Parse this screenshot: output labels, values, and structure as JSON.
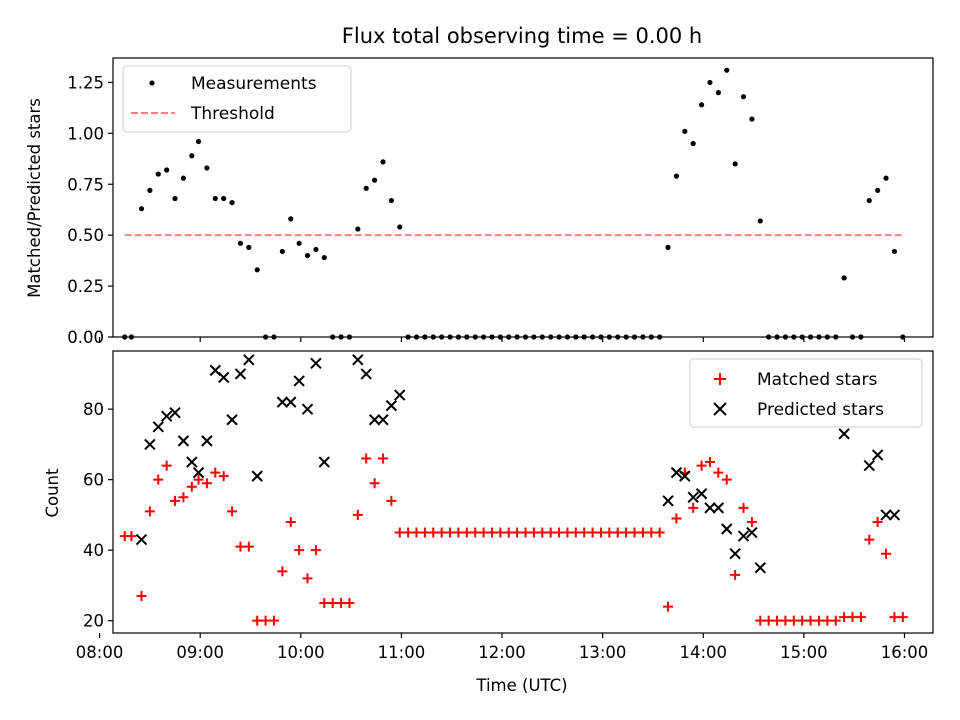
{
  "figure": {
    "title": "Flux total observing time = 0.00 h",
    "xlabel": "Time (UTC)",
    "x_ticks": [
      "08:00",
      "09:00",
      "10:00",
      "11:00",
      "12:00",
      "13:00",
      "14:00",
      "15:00",
      "16:00"
    ]
  },
  "chart_data": [
    {
      "type": "scatter",
      "panel": "top",
      "ylabel": "Matched/Predicted stars",
      "xlim": [
        "08:08",
        "16:17"
      ],
      "ylim": [
        0,
        1.37
      ],
      "y_ticks": [
        "0.00",
        "0.25",
        "0.50",
        "0.75",
        "1.00",
        "1.25"
      ],
      "y_tick_values": [
        0,
        0.25,
        0.5,
        0.75,
        1.0,
        1.25
      ],
      "legend": "top-left",
      "series": [
        {
          "name": "Measurements",
          "marker": "dot",
          "color": "#000000",
          "points": [
            [
              "08:15",
              0
            ],
            [
              "08:19",
              0
            ],
            [
              "08:25",
              0.63
            ],
            [
              "08:30",
              0.72
            ],
            [
              "08:35",
              0.8
            ],
            [
              "08:40",
              0.82
            ],
            [
              "08:45",
              0.68
            ],
            [
              "08:50",
              0.78
            ],
            [
              "08:55",
              0.89
            ],
            [
              "08:59",
              0.96
            ],
            [
              "09:04",
              0.83
            ],
            [
              "09:09",
              0.68
            ],
            [
              "09:14",
              0.68
            ],
            [
              "09:19",
              0.66
            ],
            [
              "09:24",
              0.46
            ],
            [
              "09:29",
              0.44
            ],
            [
              "09:34",
              0.33
            ],
            [
              "09:39",
              0
            ],
            [
              "09:44",
              0
            ],
            [
              "09:49",
              0.42
            ],
            [
              "09:54",
              0.58
            ],
            [
              "09:59",
              0.46
            ],
            [
              "10:04",
              0.4
            ],
            [
              "10:09",
              0.43
            ],
            [
              "10:14",
              0.39
            ],
            [
              "10:19",
              0
            ],
            [
              "10:24",
              0
            ],
            [
              "10:29",
              0
            ],
            [
              "10:34",
              0.53
            ],
            [
              "10:39",
              0.73
            ],
            [
              "10:44",
              0.77
            ],
            [
              "10:49",
              0.86
            ],
            [
              "10:54",
              0.67
            ],
            [
              "10:59",
              0.54
            ],
            [
              "11:04",
              0
            ],
            [
              "11:09",
              0
            ],
            [
              "11:14",
              0
            ],
            [
              "11:19",
              0
            ],
            [
              "11:24",
              0
            ],
            [
              "11:29",
              0
            ],
            [
              "11:34",
              0
            ],
            [
              "11:39",
              0
            ],
            [
              "11:44",
              0
            ],
            [
              "11:49",
              0
            ],
            [
              "11:54",
              0
            ],
            [
              "11:59",
              0
            ],
            [
              "12:04",
              0
            ],
            [
              "12:09",
              0
            ],
            [
              "12:14",
              0
            ],
            [
              "12:19",
              0
            ],
            [
              "12:24",
              0
            ],
            [
              "12:29",
              0
            ],
            [
              "12:34",
              0
            ],
            [
              "12:39",
              0
            ],
            [
              "12:44",
              0
            ],
            [
              "12:49",
              0
            ],
            [
              "12:54",
              0
            ],
            [
              "12:59",
              0
            ],
            [
              "13:04",
              0
            ],
            [
              "13:09",
              0
            ],
            [
              "13:14",
              0
            ],
            [
              "13:19",
              0
            ],
            [
              "13:24",
              0
            ],
            [
              "13:29",
              0
            ],
            [
              "13:34",
              0
            ],
            [
              "13:39",
              0.44
            ],
            [
              "13:44",
              0.79
            ],
            [
              "13:49",
              1.01
            ],
            [
              "13:54",
              0.95
            ],
            [
              "13:59",
              1.14
            ],
            [
              "14:04",
              1.25
            ],
            [
              "14:09",
              1.2
            ],
            [
              "14:14",
              1.31
            ],
            [
              "14:19",
              0.85
            ],
            [
              "14:24",
              1.18
            ],
            [
              "14:29",
              1.07
            ],
            [
              "14:34",
              0.57
            ],
            [
              "14:39",
              0
            ],
            [
              "14:44",
              0
            ],
            [
              "14:49",
              0
            ],
            [
              "14:54",
              0
            ],
            [
              "14:59",
              0
            ],
            [
              "15:04",
              0
            ],
            [
              "15:09",
              0
            ],
            [
              "15:14",
              0
            ],
            [
              "15:19",
              0
            ],
            [
              "15:24",
              0.29
            ],
            [
              "15:29",
              0
            ],
            [
              "15:34",
              0
            ],
            [
              "15:39",
              0.67
            ],
            [
              "15:44",
              0.72
            ],
            [
              "15:49",
              0.78
            ],
            [
              "15:54",
              0.42
            ],
            [
              "15:59",
              0
            ]
          ]
        },
        {
          "name": "Threshold",
          "marker": "dashed-line",
          "color": "#ff7f7f",
          "points": [
            [
              "08:15",
              0.5
            ],
            [
              "15:59",
              0.5
            ]
          ]
        }
      ]
    },
    {
      "type": "scatter",
      "panel": "bottom",
      "ylabel": "Count",
      "xlim": [
        "08:08",
        "16:17"
      ],
      "ylim": [
        16.5,
        96.5
      ],
      "y_ticks": [
        "20",
        "40",
        "60",
        "80"
      ],
      "y_tick_values": [
        20,
        40,
        60,
        80
      ],
      "legend": "top-right",
      "series": [
        {
          "name": "Matched stars",
          "marker": "plus",
          "color": "#ff0000",
          "points": [
            [
              "08:15",
              44
            ],
            [
              "08:19",
              44
            ],
            [
              "08:25",
              27
            ],
            [
              "08:30",
              51
            ],
            [
              "08:35",
              60
            ],
            [
              "08:40",
              64
            ],
            [
              "08:45",
              54
            ],
            [
              "08:50",
              55
            ],
            [
              "08:55",
              58
            ],
            [
              "08:59",
              60
            ],
            [
              "09:04",
              59
            ],
            [
              "09:09",
              62
            ],
            [
              "09:14",
              61
            ],
            [
              "09:19",
              51
            ],
            [
              "09:24",
              41
            ],
            [
              "09:29",
              41
            ],
            [
              "09:34",
              20
            ],
            [
              "09:39",
              20
            ],
            [
              "09:44",
              20
            ],
            [
              "09:49",
              34
            ],
            [
              "09:54",
              48
            ],
            [
              "09:59",
              40
            ],
            [
              "10:04",
              32
            ],
            [
              "10:09",
              40
            ],
            [
              "10:14",
              25
            ],
            [
              "10:19",
              25
            ],
            [
              "10:24",
              25
            ],
            [
              "10:29",
              25
            ],
            [
              "10:34",
              50
            ],
            [
              "10:39",
              66
            ],
            [
              "10:44",
              59
            ],
            [
              "10:49",
              66
            ],
            [
              "10:54",
              54
            ],
            [
              "10:59",
              45
            ],
            [
              "11:04",
              45
            ],
            [
              "11:09",
              45
            ],
            [
              "11:14",
              45
            ],
            [
              "11:19",
              45
            ],
            [
              "11:24",
              45
            ],
            [
              "11:29",
              45
            ],
            [
              "11:34",
              45
            ],
            [
              "11:39",
              45
            ],
            [
              "11:44",
              45
            ],
            [
              "11:49",
              45
            ],
            [
              "11:54",
              45
            ],
            [
              "11:59",
              45
            ],
            [
              "12:04",
              45
            ],
            [
              "12:09",
              45
            ],
            [
              "12:14",
              45
            ],
            [
              "12:19",
              45
            ],
            [
              "12:24",
              45
            ],
            [
              "12:29",
              45
            ],
            [
              "12:34",
              45
            ],
            [
              "12:39",
              45
            ],
            [
              "12:44",
              45
            ],
            [
              "12:49",
              45
            ],
            [
              "12:54",
              45
            ],
            [
              "12:59",
              45
            ],
            [
              "13:04",
              45
            ],
            [
              "13:09",
              45
            ],
            [
              "13:14",
              45
            ],
            [
              "13:19",
              45
            ],
            [
              "13:24",
              45
            ],
            [
              "13:29",
              45
            ],
            [
              "13:34",
              45
            ],
            [
              "13:39",
              24
            ],
            [
              "13:44",
              49
            ],
            [
              "13:49",
              62
            ],
            [
              "13:54",
              52
            ],
            [
              "13:59",
              64
            ],
            [
              "14:04",
              65
            ],
            [
              "14:09",
              62
            ],
            [
              "14:14",
              60
            ],
            [
              "14:19",
              33
            ],
            [
              "14:24",
              52
            ],
            [
              "14:29",
              48
            ],
            [
              "14:34",
              20
            ],
            [
              "14:39",
              20
            ],
            [
              "14:44",
              20
            ],
            [
              "14:49",
              20
            ],
            [
              "14:54",
              20
            ],
            [
              "14:59",
              20
            ],
            [
              "15:04",
              20
            ],
            [
              "15:09",
              20
            ],
            [
              "15:14",
              20
            ],
            [
              "15:19",
              20
            ],
            [
              "15:24",
              21
            ],
            [
              "15:29",
              21
            ],
            [
              "15:34",
              21
            ],
            [
              "15:39",
              43
            ],
            [
              "15:44",
              48
            ],
            [
              "15:49",
              39
            ],
            [
              "15:54",
              21
            ],
            [
              "15:59",
              21
            ]
          ]
        },
        {
          "name": "Predicted stars",
          "marker": "x",
          "color": "#000000",
          "points": [
            [
              "08:25",
              43
            ],
            [
              "08:30",
              70
            ],
            [
              "08:35",
              75
            ],
            [
              "08:40",
              78
            ],
            [
              "08:45",
              79
            ],
            [
              "08:50",
              71
            ],
            [
              "08:55",
              65
            ],
            [
              "08:59",
              62
            ],
            [
              "09:04",
              71
            ],
            [
              "09:09",
              91
            ],
            [
              "09:14",
              89
            ],
            [
              "09:19",
              77
            ],
            [
              "09:24",
              90
            ],
            [
              "09:29",
              94
            ],
            [
              "09:34",
              61
            ],
            [
              "09:49",
              82
            ],
            [
              "09:54",
              82
            ],
            [
              "09:59",
              88
            ],
            [
              "10:04",
              80
            ],
            [
              "10:09",
              93
            ],
            [
              "10:14",
              65
            ],
            [
              "10:34",
              94
            ],
            [
              "10:39",
              90
            ],
            [
              "10:44",
              77
            ],
            [
              "10:49",
              77
            ],
            [
              "10:54",
              81
            ],
            [
              "10:59",
              84
            ],
            [
              "13:39",
              54
            ],
            [
              "13:44",
              62
            ],
            [
              "13:49",
              61
            ],
            [
              "13:54",
              55
            ],
            [
              "13:59",
              56
            ],
            [
              "14:04",
              52
            ],
            [
              "14:09",
              52
            ],
            [
              "14:14",
              46
            ],
            [
              "14:19",
              39
            ],
            [
              "14:24",
              44
            ],
            [
              "14:29",
              45
            ],
            [
              "14:34",
              35
            ],
            [
              "15:24",
              73
            ],
            [
              "15:39",
              64
            ],
            [
              "15:44",
              67
            ],
            [
              "15:49",
              50
            ],
            [
              "15:54",
              50
            ]
          ]
        }
      ]
    }
  ]
}
